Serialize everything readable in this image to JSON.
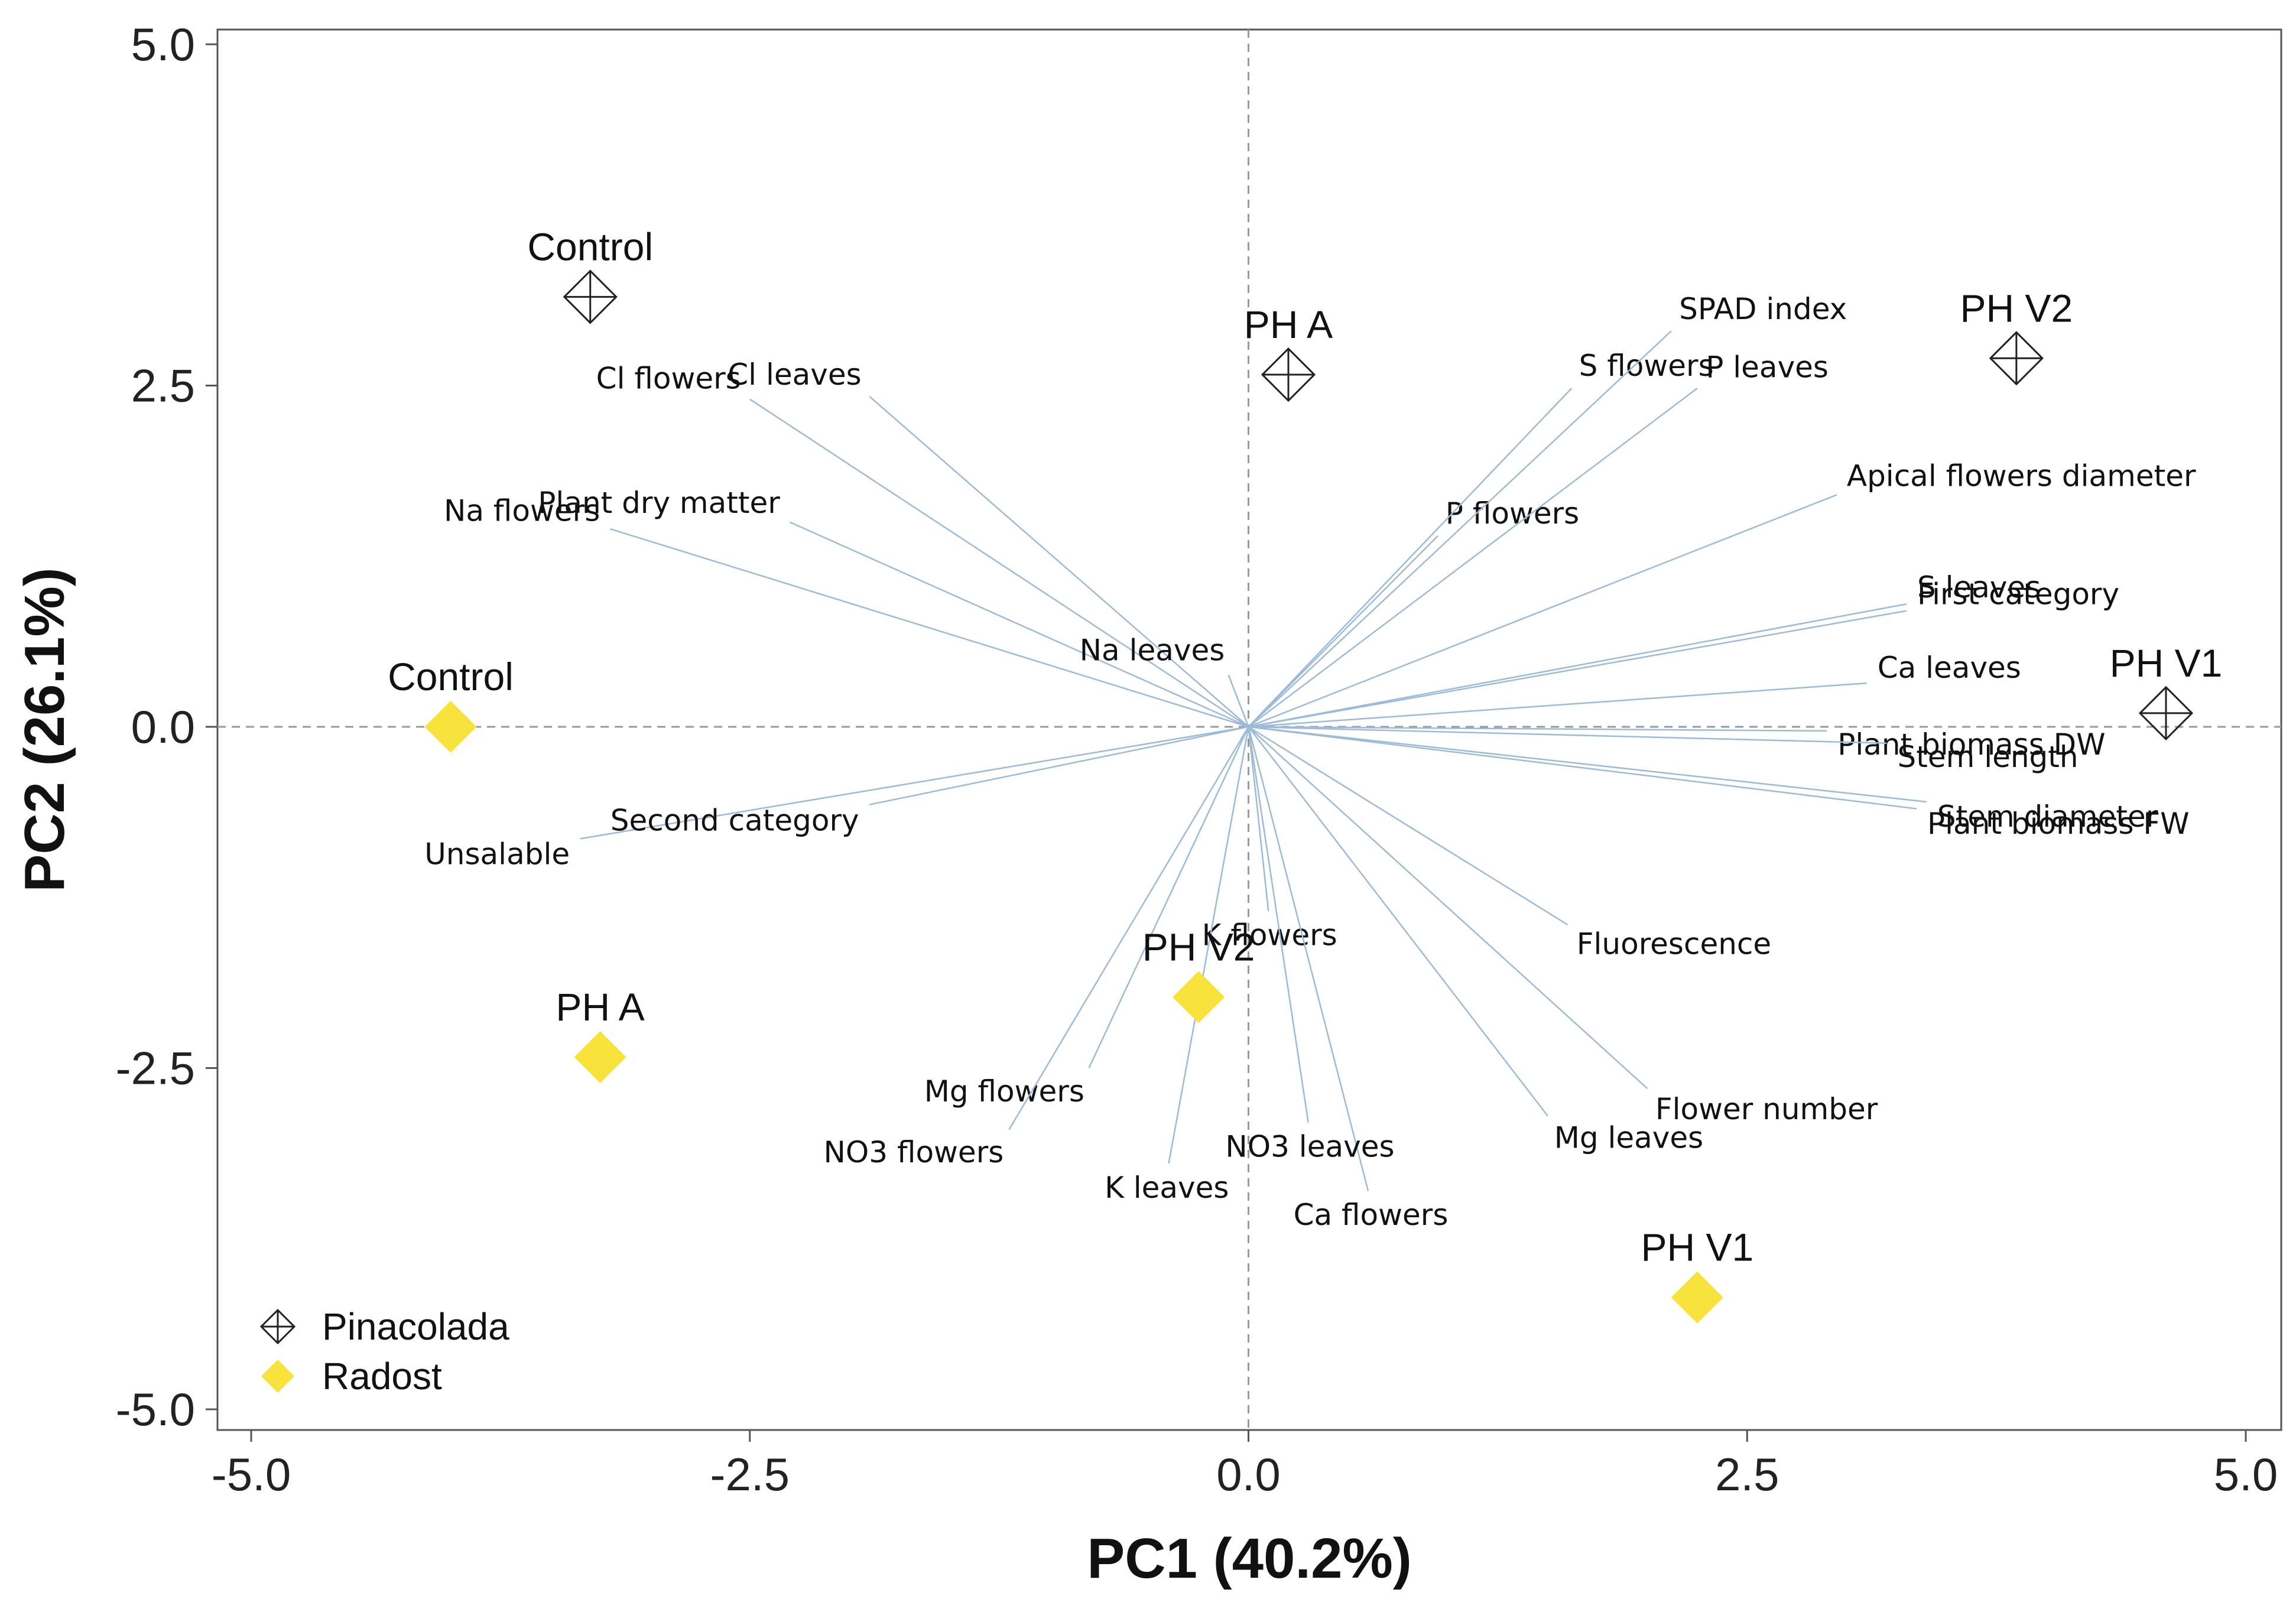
{
  "chart_data": {
    "type": "scatter",
    "subtype": "pca-biplot",
    "xlabel": "PC1 (40.2%)",
    "ylabel": "PC2 (26.1%)",
    "xlim": [
      -5.0,
      5.0
    ],
    "ylim": [
      -5.0,
      5.0
    ],
    "x_ticks": [
      -5.0,
      -2.5,
      0.0,
      2.5,
      5.0
    ],
    "x_tick_labels": [
      "-5.0",
      "-2.5",
      "0.0",
      "2.5",
      "5.0"
    ],
    "y_ticks": [
      5.0,
      2.5,
      0.0,
      -2.5,
      -5.0
    ],
    "y_tick_labels": [
      "5.0",
      "2.5",
      "0.0",
      "-2.5",
      "-5.0"
    ],
    "reference_lines": {
      "x": 0.0,
      "y": 0.0,
      "style": "dashed"
    },
    "colors": {
      "pinacolada": "#222222",
      "radost": "#f7e33b",
      "loadings": "#9dbbd9",
      "reference": "#9a9a9a"
    },
    "series": [
      {
        "name": "Pinacolada",
        "marker": "crossed-diamond",
        "points": [
          {
            "label": "Control",
            "x": -3.3,
            "y": 3.15
          },
          {
            "label": "PH A",
            "x": 0.2,
            "y": 2.58
          },
          {
            "label": "PH V2",
            "x": 3.85,
            "y": 2.7
          },
          {
            "label": "PH V1",
            "x": 4.6,
            "y": 0.1
          }
        ]
      },
      {
        "name": "Radost",
        "marker": "filled-diamond",
        "points": [
          {
            "label": "Control",
            "x": -4.0,
            "y": 0.0
          },
          {
            "label": "PH A",
            "x": -3.25,
            "y": -2.42
          },
          {
            "label": "PH V2",
            "x": -0.25,
            "y": -1.98
          },
          {
            "label": "PH V1",
            "x": 2.25,
            "y": -4.18
          }
        ]
      }
    ],
    "loadings": [
      {
        "label": "Cl flowers",
        "x": -2.5,
        "y": 2.4
      },
      {
        "label": "Cl leaves",
        "x": -1.9,
        "y": 2.42
      },
      {
        "label": "Plant dry matter",
        "x": -2.3,
        "y": 1.5
      },
      {
        "label": "Na flowers",
        "x": -3.2,
        "y": 1.45
      },
      {
        "label": "Unsalable",
        "x": -3.35,
        "y": -0.82
      },
      {
        "label": "Second category",
        "x": -1.9,
        "y": -0.57
      },
      {
        "label": "Na leaves",
        "x": -0.1,
        "y": 0.38
      },
      {
        "label": "P flowers",
        "x": 0.95,
        "y": 1.4
      },
      {
        "label": "S flowers",
        "x": 1.62,
        "y": 2.48
      },
      {
        "label": "SPAD index",
        "x": 2.12,
        "y": 2.9
      },
      {
        "label": "P leaves",
        "x": 2.25,
        "y": 2.48
      },
      {
        "label": "Apical flowers diameter",
        "x": 2.95,
        "y": 1.7
      },
      {
        "label": "S leaves",
        "x": 3.3,
        "y": 0.9
      },
      {
        "label": "First category",
        "x": 3.3,
        "y": 0.85
      },
      {
        "label": "Ca leaves",
        "x": 3.1,
        "y": 0.32
      },
      {
        "label": "Plant biomass DW",
        "x": 2.9,
        "y": -0.03
      },
      {
        "label": "Stem length",
        "x": 3.2,
        "y": -0.12
      },
      {
        "label": "Stem diameter",
        "x": 3.4,
        "y": -0.55
      },
      {
        "label": "Plant biomass FW",
        "x": 3.35,
        "y": -0.6
      },
      {
        "label": "K flowers",
        "x": 0.1,
        "y": -1.35
      },
      {
        "label": "Fluorescence",
        "x": 1.6,
        "y": -1.45
      },
      {
        "label": "Flower number",
        "x": 2.0,
        "y": -2.65
      },
      {
        "label": "Mg leaves",
        "x": 1.5,
        "y": -2.85
      },
      {
        "label": "Ca flowers",
        "x": 0.6,
        "y": -3.4
      },
      {
        "label": "NO3 leaves",
        "x": 0.3,
        "y": -2.9
      },
      {
        "label": "K leaves",
        "x": -0.4,
        "y": -3.2
      },
      {
        "label": "Mg flowers",
        "x": -0.8,
        "y": -2.5
      },
      {
        "label": "NO3 flowers",
        "x": -1.2,
        "y": -2.95
      }
    ],
    "legend": {
      "position": "bottom-left",
      "entries": [
        {
          "label": "Pinacolada",
          "marker": "crossed-diamond"
        },
        {
          "label": "Radost",
          "marker": "filled-diamond"
        }
      ]
    }
  }
}
